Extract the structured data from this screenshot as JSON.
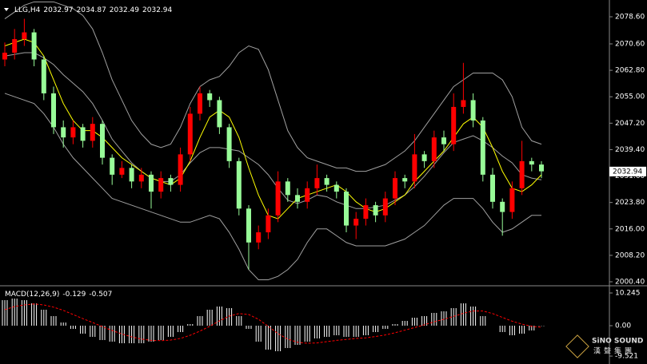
{
  "chart_data": [
    {
      "type": "candlestick",
      "title": "LLG,H4",
      "last_ohlc": [
        2032.97,
        2034.87,
        2032.49,
        2032.94
      ],
      "open": [
        2066,
        2068,
        2072,
        2074,
        2066,
        2056,
        2046,
        2043,
        2046,
        2042,
        2047,
        2037,
        2032,
        2034,
        2030,
        2032,
        2027,
        2031,
        2029,
        2038,
        2050,
        2056,
        2054,
        2046,
        2036,
        2022,
        2012,
        2015,
        2020,
        2030,
        2026,
        2024,
        2028,
        2031,
        2029,
        2027,
        2017,
        2019,
        2023,
        2020,
        2025,
        2031,
        2030,
        2038,
        2036,
        2043,
        2041,
        2052,
        2054,
        2048,
        2032,
        2024,
        2021,
        2028,
        2036,
        2035
      ],
      "high": [
        2071,
        2075,
        2078,
        2075,
        2067,
        2058,
        2048,
        2048,
        2047,
        2049,
        2048,
        2038,
        2036,
        2035,
        2034,
        2033,
        2033,
        2032,
        2040,
        2052,
        2058,
        2057,
        2055,
        2047,
        2037,
        2023,
        2017,
        2022,
        2033,
        2031,
        2028,
        2030,
        2035,
        2032,
        2030,
        2028,
        2021,
        2025,
        2024,
        2027,
        2033,
        2032,
        2044,
        2039,
        2045,
        2045,
        2056,
        2065,
        2056,
        2049,
        2034,
        2025,
        2030,
        2042,
        2037,
        2036
      ],
      "low": [
        2064,
        2066,
        2070,
        2064,
        2054,
        2044,
        2040,
        2041,
        2040,
        2040,
        2035,
        2029,
        2031,
        2028,
        2028,
        2022,
        2025,
        2027,
        2027,
        2036,
        2048,
        2052,
        2044,
        2034,
        2020,
        2004,
        2010,
        2013,
        2018,
        2024,
        2022,
        2022,
        2026,
        2027,
        2025,
        2015,
        2013,
        2017,
        2018,
        2018,
        2023,
        2028,
        2028,
        2034,
        2034,
        2039,
        2039,
        2050,
        2046,
        2030,
        2022,
        2014,
        2019,
        2026,
        2033,
        2031
      ],
      "close": [
        2068,
        2072,
        2074,
        2066,
        2056,
        2046,
        2043,
        2046,
        2042,
        2047,
        2037,
        2032,
        2034,
        2030,
        2032,
        2027,
        2031,
        2029,
        2038,
        2050,
        2056,
        2054,
        2046,
        2036,
        2022,
        2012,
        2015,
        2020,
        2030,
        2026,
        2024,
        2028,
        2031,
        2029,
        2027,
        2017,
        2019,
        2023,
        2020,
        2025,
        2031,
        2030,
        2038,
        2036,
        2043,
        2041,
        2052,
        2054,
        2048,
        2032,
        2024,
        2021,
        2028,
        2036,
        2035,
        2033
      ],
      "up_color": "#ff0000",
      "down_color": "#98fb98",
      "lines": [
        {
          "color": "#a0a0a0",
          "values": [
            2078,
            2080,
            2082,
            2083,
            2083,
            2083,
            2082,
            2081,
            2079,
            2075,
            2068,
            2060,
            2054,
            2048,
            2044,
            2041,
            2040,
            2041,
            2046,
            2053,
            2058,
            2060,
            2061,
            2064,
            2068,
            2070,
            2069,
            2063,
            2054,
            2045,
            2040,
            2037,
            2036,
            2035,
            2034,
            2034,
            2033,
            2033,
            2034,
            2035,
            2037,
            2039,
            2042,
            2046,
            2050,
            2054,
            2058,
            2060,
            2062,
            2062,
            2062,
            2060,
            2055,
            2046,
            2042,
            2041
          ]
        },
        {
          "color": "#a0a0a0",
          "values": [
            2067,
            2067.5,
            2068,
            2068,
            2066.5,
            2064.5,
            2061.5,
            2059,
            2056.5,
            2053,
            2048,
            2042.5,
            2039,
            2035.5,
            2033,
            2031,
            2030,
            2030,
            2032,
            2035.5,
            2038.5,
            2040,
            2040,
            2039.5,
            2039,
            2037,
            2035,
            2032,
            2028,
            2024.5,
            2023.5,
            2024.5,
            2026,
            2025.5,
            2024,
            2023,
            2022,
            2022,
            2022.5,
            2023,
            2024.5,
            2026,
            2028.5,
            2031.5,
            2035,
            2038.5,
            2041.5,
            2042.5,
            2043.5,
            2042,
            2040,
            2037.5,
            2035.5,
            2032,
            2031,
            2030.5
          ]
        },
        {
          "color": "#a0a0a0",
          "values": [
            2056,
            2055,
            2054,
            2053,
            2050,
            2046,
            2041,
            2037,
            2034,
            2031,
            2028,
            2025,
            2024,
            2023,
            2022,
            2021,
            2020,
            2019,
            2018,
            2018,
            2019,
            2020,
            2019,
            2015,
            2010,
            2004,
            2001,
            2001,
            2002,
            2004,
            2007,
            2012,
            2016,
            2016,
            2014,
            2012,
            2011,
            2011,
            2011,
            2011,
            2012,
            2013,
            2015,
            2017,
            2020,
            2023,
            2025,
            2025,
            2025,
            2022,
            2018,
            2015,
            2016,
            2018,
            2020,
            2020
          ]
        },
        {
          "color": "#ffff00",
          "values": [
            2070,
            2071,
            2072,
            2071,
            2067,
            2060,
            2053,
            2048,
            2045,
            2045,
            2043,
            2040,
            2037,
            2035,
            2033,
            2031,
            2030,
            2029,
            2031,
            2036,
            2043,
            2049,
            2051,
            2049,
            2043,
            2034,
            2026,
            2020,
            2019,
            2022,
            2025,
            2026,
            2027,
            2028,
            2029,
            2027,
            2024,
            2022,
            2021,
            2022,
            2024,
            2026,
            2030,
            2033,
            2036,
            2039,
            2043,
            2047,
            2049,
            2046,
            2040,
            2033,
            2028,
            2027,
            2029,
            2032
          ]
        }
      ],
      "current_price": 2032.94,
      "ylim": [
        1999.46,
        2083.55
      ],
      "yticks": [
        {
          "value": 2078.6,
          "label": "2078.60"
        },
        {
          "value": 2070.6,
          "label": "2070.60"
        },
        {
          "value": 2062.8,
          "label": "2062.80"
        },
        {
          "value": 2055,
          "label": "2055.00"
        },
        {
          "value": 2047.2,
          "label": "2047.20"
        },
        {
          "value": 2039.4,
          "label": "2039.40"
        },
        {
          "value": 2031.6,
          "label": "2031.60"
        },
        {
          "value": 2023.8,
          "label": "2023.80"
        },
        {
          "value": 2016,
          "label": "2016.00"
        },
        {
          "value": 2008.2,
          "label": "2008.20"
        },
        {
          "value": 2000.4,
          "label": "2000.40"
        }
      ]
    },
    {
      "type": "macd",
      "title": "MACD(12,26,9)",
      "indicator_values": [
        -0.129,
        -0.507
      ],
      "histogram": {
        "color": "#ffffff",
        "values": [
          8,
          8.5,
          8,
          7,
          5,
          3,
          1,
          -1,
          -2.5,
          -3.5,
          -4.5,
          -5,
          -5.5,
          -5.5,
          -5.5,
          -5,
          -4.5,
          -3.5,
          -2,
          0.5,
          3,
          5,
          6,
          5.5,
          3,
          -1,
          -5,
          -7.5,
          -8,
          -7,
          -6,
          -5,
          -4,
          -3.5,
          -3,
          -3.5,
          -3.5,
          -3,
          -2,
          -1,
          0.5,
          1.5,
          2.5,
          3,
          4,
          4.5,
          5.5,
          7,
          6,
          3,
          0,
          -2,
          -3,
          -2.5,
          -1.5,
          -0.129
        ]
      },
      "signal": {
        "color": "#ff0000",
        "values": [
          5,
          6,
          6.5,
          6.8,
          6.5,
          5.8,
          4.8,
          3.5,
          2.2,
          1,
          -0.3,
          -1.5,
          -2.6,
          -3.5,
          -4.2,
          -4.6,
          -4.7,
          -4.5,
          -4,
          -3,
          -1.7,
          -0.2,
          1.5,
          3,
          3.8,
          3.5,
          2,
          -0.2,
          -2.5,
          -4.2,
          -5.2,
          -5.5,
          -5.4,
          -5,
          -4.6,
          -4.3,
          -4,
          -3.8,
          -3.4,
          -2.9,
          -2.2,
          -1.4,
          -0.6,
          0.3,
          1.2,
          2,
          2.9,
          3.9,
          4.6,
          4.6,
          3.8,
          2.6,
          1.4,
          0.5,
          -0.2,
          -0.507
        ]
      },
      "ylim": [
        -12,
        12
      ],
      "yticks": [
        10.245,
        {
          "value": 0,
          "label": "0.00"
        },
        -9.521
      ]
    }
  ],
  "watermark": {
    "brand": "SiNO SOUND",
    "chinese": "漢聲集團"
  }
}
